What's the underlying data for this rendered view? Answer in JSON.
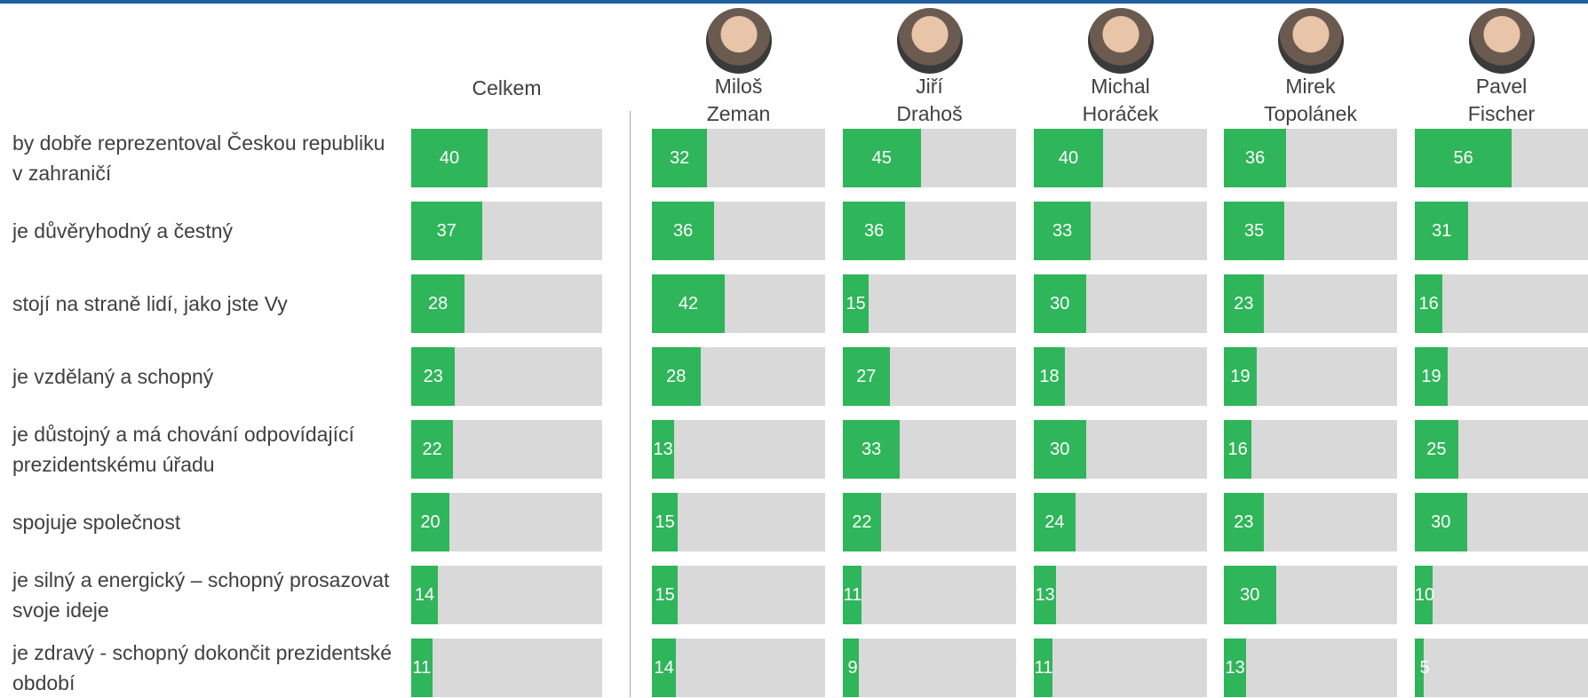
{
  "chart_data": {
    "type": "bar",
    "categories": [
      "by dobře reprezentoval Českou republiku v zahraničí",
      "je důvěryhodný a čestný",
      "stojí na straně lidí, jako jste Vy",
      "je vzdělaný a schopný",
      "je důstojný a má chování odpovídající prezidentskému úřadu",
      "spojuje společnost",
      "je silný a energický – schopný prosazovat svoje ideje",
      "je zdravý - schopný dokončit prezidentské období"
    ],
    "series": [
      {
        "name": "Celkem",
        "color": "#2fb55a",
        "values": [
          40,
          37,
          28,
          23,
          22,
          20,
          14,
          11
        ]
      },
      {
        "name": "Miloš Zeman",
        "color": "#2fb55a",
        "values": [
          32,
          36,
          42,
          28,
          13,
          15,
          15,
          14
        ]
      },
      {
        "name": "Jiří Drahoš",
        "color": "#2fb55a",
        "values": [
          45,
          36,
          15,
          27,
          33,
          22,
          11,
          9
        ]
      },
      {
        "name": "Michal Horáček",
        "color": "#2fb55a",
        "values": [
          40,
          33,
          30,
          18,
          30,
          24,
          13,
          11
        ]
      },
      {
        "name": "Mirek Topolánek",
        "color": "#2fb55a",
        "values": [
          36,
          35,
          23,
          19,
          16,
          23,
          30,
          13
        ]
      },
      {
        "name": "Pavel Fischer",
        "color": "#2fb55a",
        "values": [
          56,
          31,
          16,
          19,
          25,
          30,
          10,
          5
        ]
      }
    ],
    "track_color": "#d9d9d9",
    "xlim": [
      0,
      100
    ]
  }
}
